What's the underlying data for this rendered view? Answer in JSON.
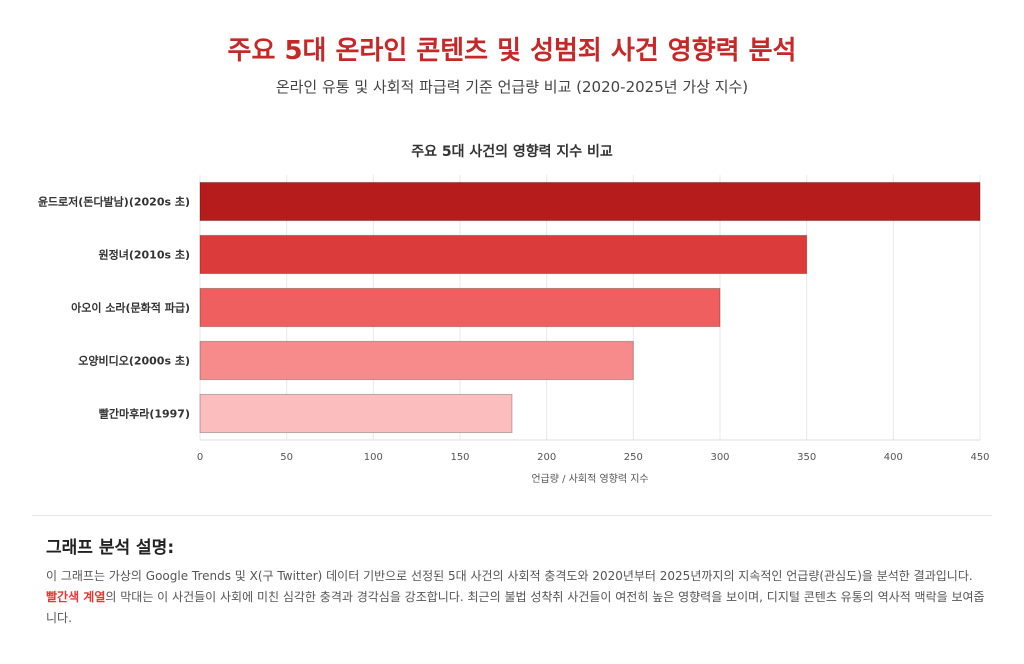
{
  "header": {
    "title": "주요 5대 온라인 콘텐츠 및 성범죄 사건 영향력 분석",
    "subtitle": "온라인 유통 및 사회적 파급력 기준 언급량 비교 (2020-2025년 가상 지수)"
  },
  "chart_data": {
    "type": "bar",
    "orientation": "horizontal",
    "title": "주요 5대 사건의 영향력 지수 비교",
    "xlabel": "언급량 / 사회적 영향력 지수",
    "ylabel": "",
    "categories": [
      "윤드로저(돈다발남)(2020s 초)",
      "원정녀(2010s 초)",
      "아오이 소라(문화적 파급)",
      "오양비디오(2000s 초)",
      "빨간마후라(1997)"
    ],
    "values": [
      450,
      350,
      300,
      250,
      180
    ],
    "colors": [
      "#b71c1c",
      "#dc3b3b",
      "#ef5f5f",
      "#f78b8b",
      "#fbbdbd"
    ],
    "xlim": [
      0,
      450
    ],
    "xticks": [
      0,
      50,
      100,
      150,
      200,
      250,
      300,
      350,
      400,
      450
    ],
    "grid": true
  },
  "analysis": {
    "heading": "그래프 분석 설명:",
    "text_before": "이 그래프는 가상의 Google Trends 및 X(구 Twitter) 데이터 기반으로 선정된 5대 사건의 사회적 충격도와 2020년부터 2025년까지의 지속적인 언급량(관심도)을 분석한 결과입니다. ",
    "highlight": "빨간색 계열",
    "text_after": "의 막대는 이 사건들이 사회에 미친 심각한 충격과 경각심을 강조합니다. 최근의 불법 성착취 사건들이 여전히 높은 영향력을 보이며, 디지털 콘텐츠 유통의 역사적 맥락을 보여줍니다."
  }
}
